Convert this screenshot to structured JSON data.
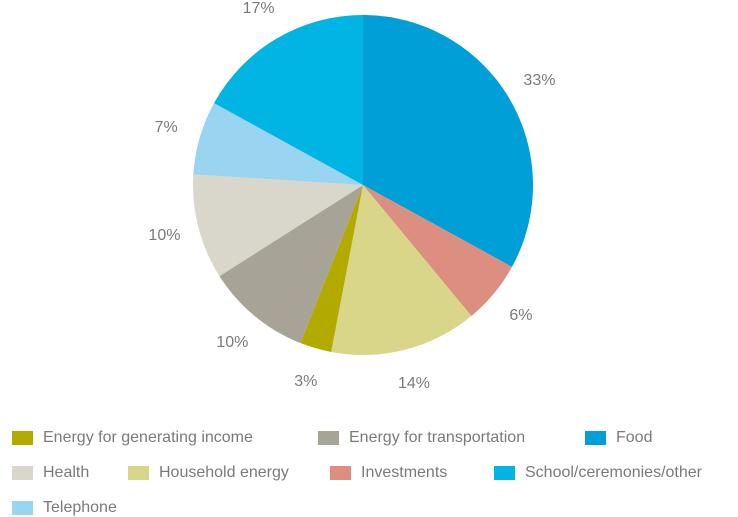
{
  "chart_data": {
    "type": "pie",
    "categories": [
      "Energy for generating income",
      "Energy for transportation",
      "Food",
      "Health",
      "Household energy",
      "Investments",
      "School/ceremonies/other",
      "Telephone"
    ],
    "values": [
      3,
      10,
      33,
      10,
      14,
      6,
      17,
      7
    ],
    "value_labels": [
      "3%",
      "10%",
      "33%",
      "10%",
      "14%",
      "6%",
      "17%",
      "7%"
    ],
    "colors": [
      "#b3aa00",
      "#a7a396",
      "#009fd8",
      "#d9d6cc",
      "#d9d68a",
      "#dc8f80",
      "#00b4e4",
      "#99d5f0"
    ],
    "legend": "bottom"
  }
}
